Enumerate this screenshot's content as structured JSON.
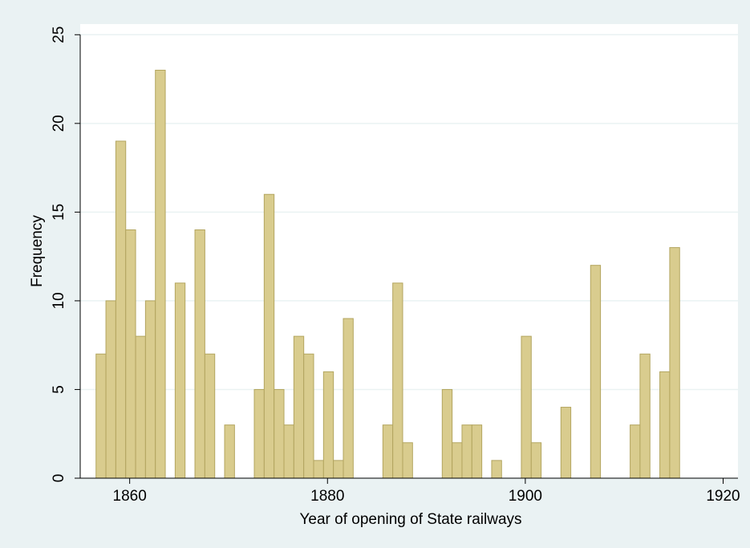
{
  "chart_data": {
    "type": "histogram",
    "xlabel": "Year of opening of State railways",
    "ylabel": "Frequency",
    "bins": [
      1856.6,
      1857.6,
      1858.6,
      1859.6,
      1860.6,
      1861.6,
      1862.6,
      1863.6,
      1864.6,
      1865.6,
      1866.6,
      1867.6,
      1868.6,
      1869.6,
      1870.6,
      1871.6,
      1872.6,
      1873.6,
      1874.6,
      1875.6,
      1876.6,
      1877.6,
      1878.6,
      1879.6,
      1880.6,
      1881.6,
      1882.6,
      1883.6,
      1884.6,
      1885.6,
      1886.6,
      1887.6,
      1888.6,
      1889.6,
      1890.6,
      1891.6,
      1892.6,
      1893.6,
      1894.6,
      1895.6,
      1896.6,
      1897.6,
      1898.6,
      1899.6,
      1900.6,
      1901.6,
      1902.6,
      1903.6,
      1904.6,
      1905.6,
      1906.6,
      1907.6,
      1908.6,
      1909.6,
      1910.6,
      1911.6,
      1912.6,
      1913.6,
      1914.6,
      1915.6
    ],
    "values": [
      7,
      10,
      19,
      14,
      8,
      10,
      23,
      0,
      11,
      0,
      14,
      7,
      0,
      3,
      0,
      0,
      5,
      16,
      5,
      3,
      8,
      7,
      1,
      6,
      1,
      9,
      0,
      0,
      0,
      3,
      11,
      2,
      0,
      0,
      0,
      5,
      2,
      3,
      3,
      0,
      1,
      0,
      0,
      8,
      2,
      0,
      0,
      4,
      0,
      0,
      12,
      0,
      0,
      0,
      3,
      7,
      0,
      6,
      13
    ],
    "color": "#d9cc8e",
    "edgecolor": "#b3a55f",
    "xlim": [
      1855,
      1921.5
    ],
    "xticks": [
      1860,
      1880,
      1900,
      1920
    ],
    "ylim": [
      0,
      25.6
    ],
    "yticks": [
      0,
      5,
      10,
      15,
      20,
      25
    ],
    "grid": true
  }
}
